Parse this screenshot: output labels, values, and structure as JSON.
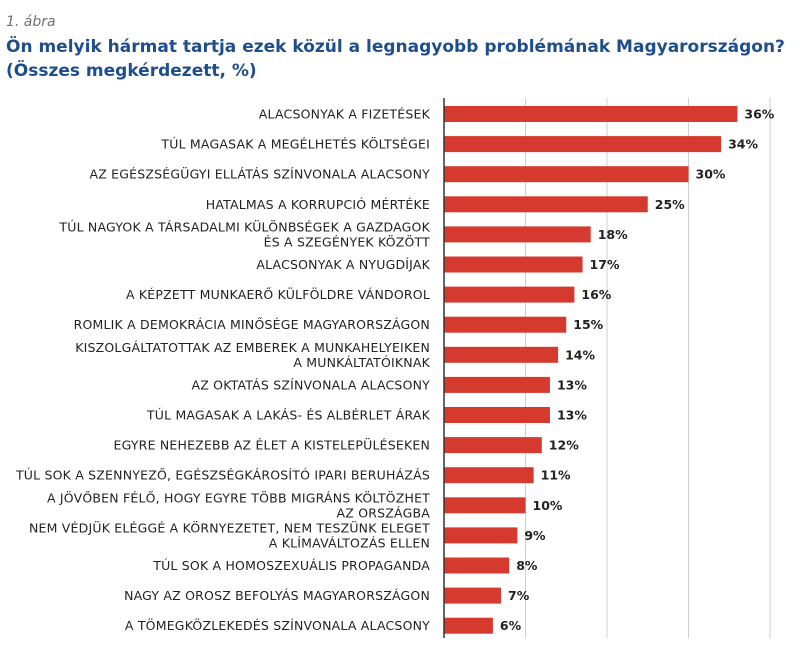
{
  "figure": {
    "label": "1. ábra",
    "title": "Ön melyik hármat tartja ezek közül a legnagyobb problémának Magyarországon?",
    "subtitle": "(Összes megkérdezett, %)"
  },
  "colors": {
    "bar": "#d63a2f",
    "title": "#1f4e8c",
    "grid": "#cfcfcf",
    "axis": "#333333"
  },
  "chart_data": {
    "type": "bar",
    "orientation": "horizontal",
    "categories": [
      [
        "ALACSONYAK A FIZETÉSEK"
      ],
      [
        "TÚL MAGASAK A MEGÉLHETÉS KÖLTSÉGEI"
      ],
      [
        "AZ EGÉSZSÉGÜGYI ELLÁTÁS SZÍNVONALA ALACSONY"
      ],
      [
        "HATALMAS A KORRUPCIÓ MÉRTÉKE"
      ],
      [
        "TÚL NAGYOK A TÁRSADALMI KÜLÖNBSÉGEK A GAZDAGOK",
        "ÉS A SZEGÉNYEK KÖZÖTT"
      ],
      [
        "ALACSONYAK A NYUGDÍJAK"
      ],
      [
        "A KÉPZETT MUNKAERŐ KÜLFÖLDRE VÁNDOROL"
      ],
      [
        "ROMLIK A DEMOKRÁCIA MINŐSÉGE MAGYARORSZÁGON"
      ],
      [
        "KISZOLGÁLTATOTTAK AZ EMBEREK A MUNKAHELYEIKEN",
        "A MUNKÁLTATÓIKNAK"
      ],
      [
        "AZ OKTATÁS SZÍNVONALA ALACSONY"
      ],
      [
        "TÚL MAGASAK A LAKÁS- ÉS ALBÉRLET ÁRAK"
      ],
      [
        "EGYRE NEHEZEBB AZ ÉLET A KISTELEPÜLÉSEKEN"
      ],
      [
        "TÚL SOK A SZENNYEZŐ, EGÉSZSÉGKÁROSÍTÓ IPARI BERUHÁZÁS"
      ],
      [
        "A JÖVŐBEN FÉLŐ, HOGY EGYRE TÖBB MIGRÁNS KÖLTÖZHET",
        "AZ ORSZÁGBA"
      ],
      [
        "NEM VÉDJÜK ELÉGGÉ A KÖRNYEZETET, NEM TESZÜNK ELEGET",
        "A KLÍMAVÁLTOZÁS ELLEN"
      ],
      [
        "TÚL SOK A HOMOSZEXUÁLIS PROPAGANDA"
      ],
      [
        "NAGY AZ OROSZ BEFOLYÁS MAGYARORSZÁGON"
      ],
      [
        "A TÖMEGKÖZLEKEDÉS SZÍNVONALA ALACSONY"
      ]
    ],
    "values": [
      36,
      34,
      30,
      25,
      18,
      17,
      16,
      15,
      14,
      13,
      13,
      12,
      11,
      10,
      9,
      8,
      7,
      6
    ],
    "value_labels": [
      "36%",
      "34%",
      "30%",
      "25%",
      "18%",
      "17%",
      "16%",
      "15%",
      "14%",
      "13%",
      "13%",
      "12%",
      "11%",
      "10%",
      "9%",
      "8%",
      "7%",
      "6%"
    ],
    "xlim": [
      0,
      40
    ],
    "grid": true,
    "grid_values": [
      10,
      20,
      30,
      40
    ],
    "legend": "none"
  }
}
